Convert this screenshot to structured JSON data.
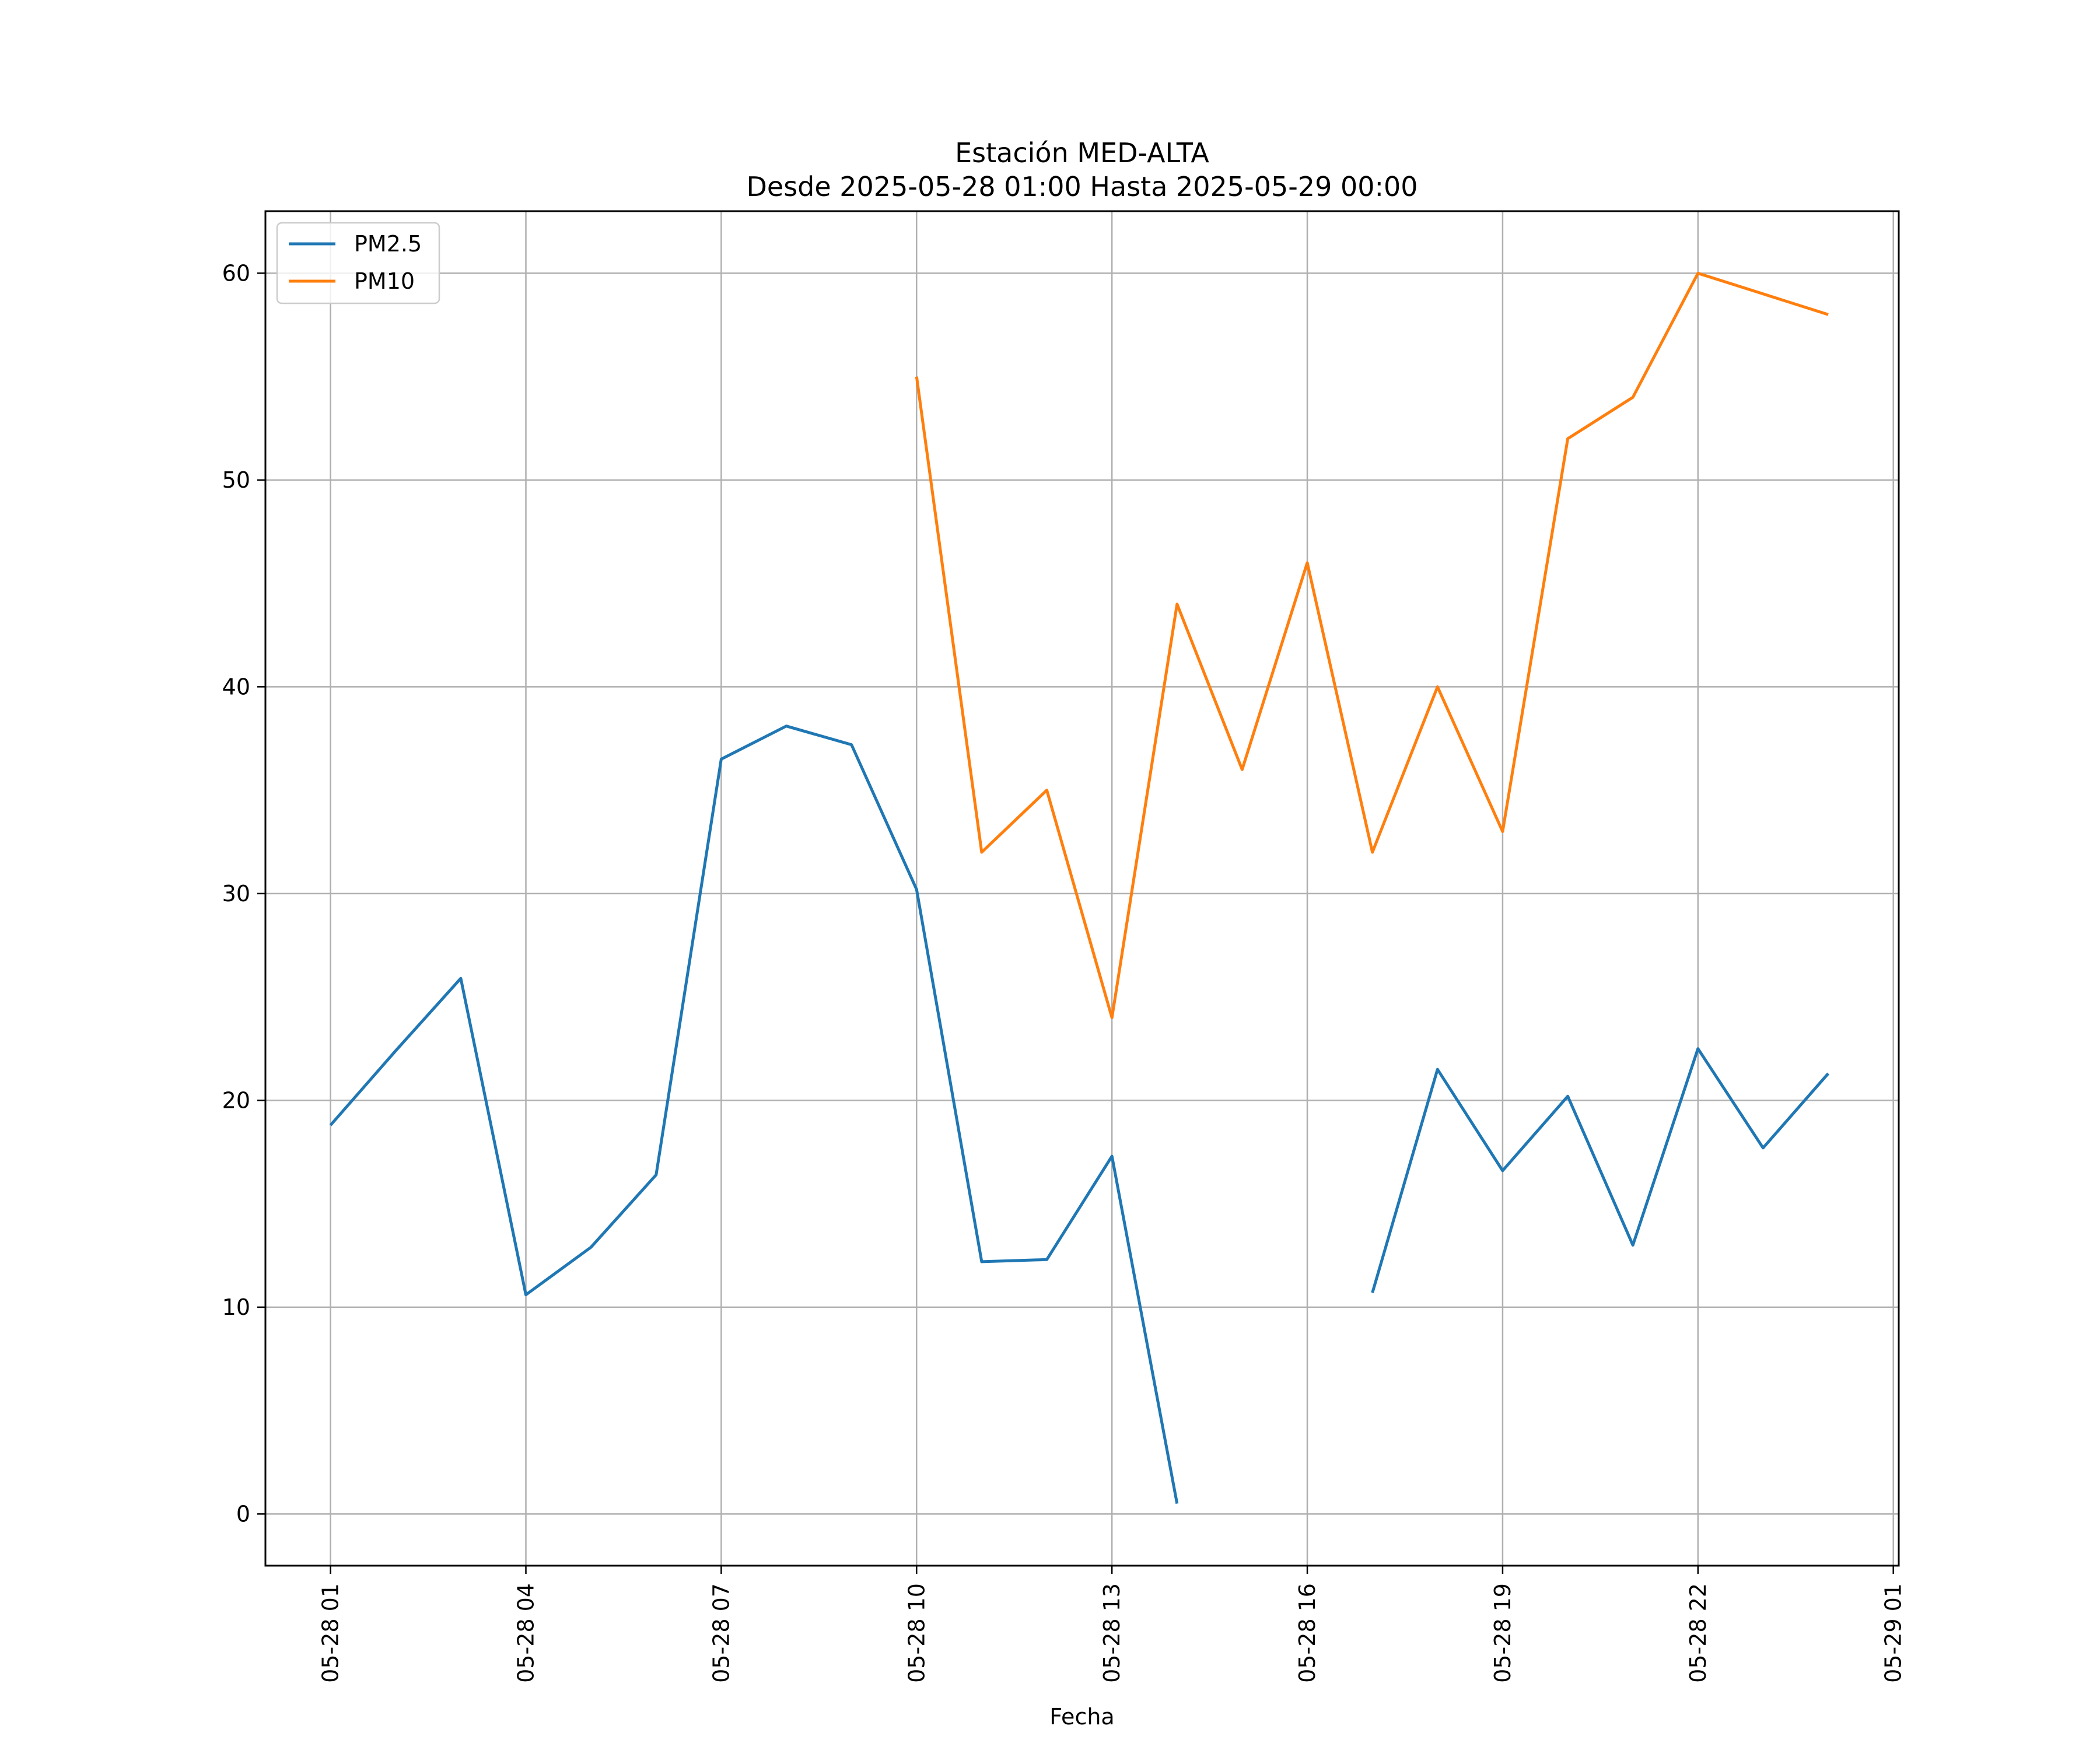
{
  "chart_data": {
    "type": "line",
    "title": "Estación MED-ALTA",
    "subtitle": "Desde 2025-05-28 01:00 Hasta 2025-05-29 00:00",
    "xlabel": "Fecha",
    "ylabel": "",
    "x": [
      "2025-05-28 01:00",
      "2025-05-28 02:00",
      "2025-05-28 03:00",
      "2025-05-28 04:00",
      "2025-05-28 05:00",
      "2025-05-28 06:00",
      "2025-05-28 07:00",
      "2025-05-28 08:00",
      "2025-05-28 09:00",
      "2025-05-28 10:00",
      "2025-05-28 11:00",
      "2025-05-28 12:00",
      "2025-05-28 13:00",
      "2025-05-28 14:00",
      "2025-05-28 15:00",
      "2025-05-28 16:00",
      "2025-05-28 17:00",
      "2025-05-28 18:00",
      "2025-05-28 19:00",
      "2025-05-28 20:00",
      "2025-05-28 21:00",
      "2025-05-28 22:00",
      "2025-05-28 23:00",
      "2025-05-29 00:00"
    ],
    "series": [
      {
        "name": "PM2.5",
        "color": "#1f77b4",
        "values": [
          18.8,
          22.4,
          25.9,
          10.6,
          12.9,
          16.4,
          36.5,
          38.1,
          37.2,
          30.2,
          12.2,
          12.3,
          17.3,
          0.5,
          null,
          null,
          10.7,
          21.5,
          16.6,
          20.2,
          13.0,
          22.5,
          17.7,
          21.3
        ]
      },
      {
        "name": "PM10",
        "color": "#ff7f0e",
        "values": [
          null,
          null,
          null,
          null,
          null,
          null,
          null,
          null,
          null,
          55,
          32,
          35,
          24,
          44,
          36,
          46,
          32,
          40,
          33,
          52,
          54,
          60,
          59,
          58
        ]
      }
    ],
    "xticks": [
      "05-28 01",
      "05-28 04",
      "05-28 07",
      "05-28 10",
      "05-28 13",
      "05-28 16",
      "05-28 19",
      "05-28 22",
      "05-29 01"
    ],
    "yticks": [
      0,
      10,
      20,
      30,
      40,
      50,
      60
    ],
    "ylim": [
      -2.5,
      63
    ],
    "xlim": [
      "2025-05-28 00:00",
      "2025-05-29 01:05"
    ],
    "grid": true,
    "legend": "upper-left"
  }
}
